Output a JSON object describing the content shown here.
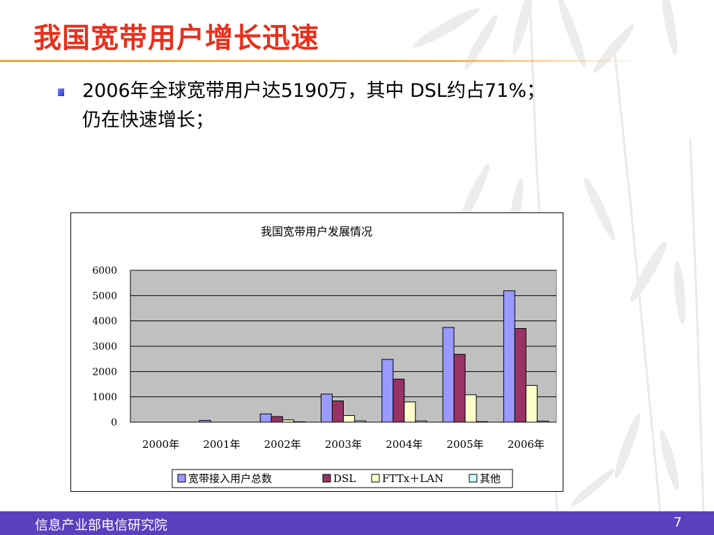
{
  "slide": {
    "title": "我国宽带用户增长迅速",
    "bullet_line1": "2006年全球宽带用户达5190万，其中 DSL约占71%；",
    "bullet_line2": "仍在快速增长；",
    "footer_left": "信息产业部电信研究院",
    "page_number": "7"
  },
  "colors": {
    "title": "#e8301c",
    "accent_rule": "#f0a43a",
    "footer_bg": "#5a3fbf",
    "plot_bg": "#c0c0c0",
    "series_total": "#9999ff",
    "series_dsl": "#993366",
    "series_fttx": "#ffffcc",
    "series_other": "#ccffff"
  },
  "chart_data": {
    "type": "bar",
    "title": "我国宽带用户发展情况",
    "categories": [
      "2000年",
      "2001年",
      "2002年",
      "2003年",
      "2004年",
      "2005年",
      "2006年"
    ],
    "series": [
      {
        "name": "宽带接入用户总数",
        "values": [
          0,
          70,
          325,
          1110,
          2480,
          3740,
          5190
        ]
      },
      {
        "name": "DSL",
        "values": [
          0,
          0,
          220,
          840,
          1700,
          2680,
          3700
        ]
      },
      {
        "name": "FTTx＋LAN",
        "values": [
          0,
          0,
          90,
          260,
          800,
          1080,
          1450
        ]
      },
      {
        "name": "其他",
        "values": [
          0,
          0,
          15,
          50,
          50,
          20,
          40
        ]
      }
    ],
    "yticks": [
      "0",
      "1000",
      "2000",
      "3000",
      "4000",
      "5000",
      "6000"
    ],
    "ylim": [
      0,
      6000
    ],
    "grid": true,
    "legend": "bottom"
  }
}
